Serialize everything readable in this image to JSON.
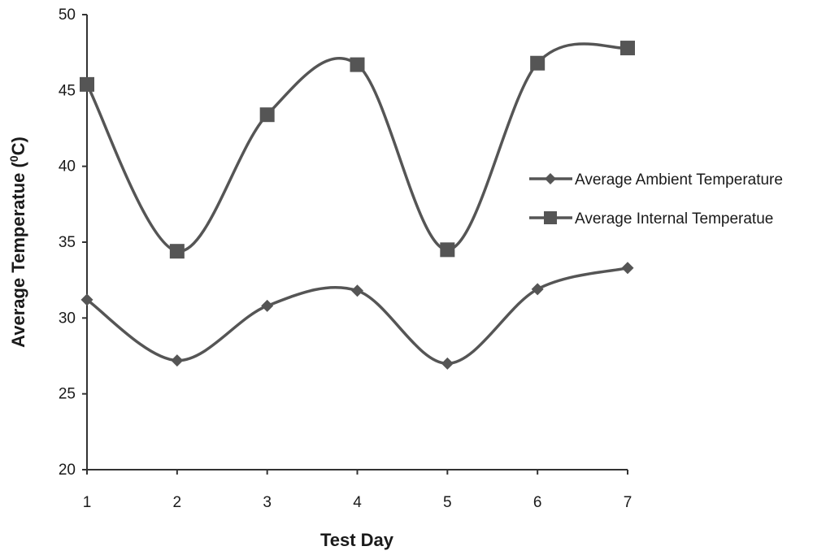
{
  "chart_data": {
    "type": "line",
    "title": "",
    "xlabel": "Test Day",
    "ylabel": "Average Temperatue (",
    "ylabel_sup": "0",
    "ylabel_unit": "C)",
    "x": [
      1,
      2,
      3,
      4,
      5,
      6,
      7
    ],
    "xlim": [
      1,
      7
    ],
    "ylim": [
      20,
      50
    ],
    "yticks": [
      20,
      25,
      30,
      35,
      40,
      45,
      50
    ],
    "grid": false,
    "legend_position": "right",
    "line_color": "#555555",
    "series": [
      {
        "name": "Average Ambient Temperature",
        "marker": "diamond",
        "values": [
          31.2,
          27.2,
          30.8,
          31.8,
          27.0,
          31.9,
          33.3
        ]
      },
      {
        "name": "Average Internal Temperatue",
        "marker": "square",
        "values": [
          45.4,
          34.4,
          43.4,
          46.7,
          34.5,
          46.8,
          47.8
        ]
      }
    ]
  }
}
